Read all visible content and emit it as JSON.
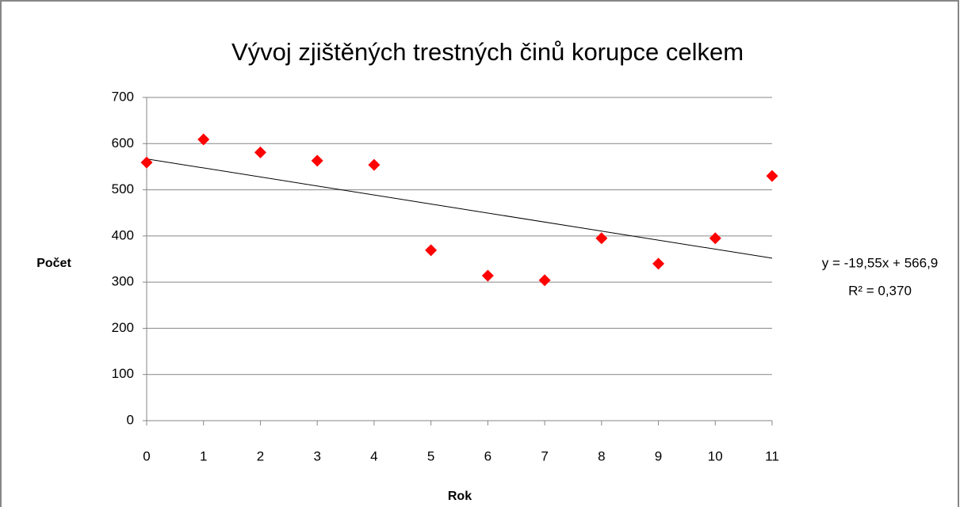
{
  "chart_data": {
    "type": "scatter",
    "title": "Vývoj zjištěných trestných činů korupce celkem",
    "x_label": "Rok",
    "y_label": "Počet",
    "x": [
      0,
      1,
      2,
      3,
      4,
      5,
      6,
      7,
      8,
      9,
      10,
      11
    ],
    "series": [
      {
        "name": "Počet",
        "color": "#ff0000",
        "values": [
          559,
          609,
          581,
          563,
          554,
          369,
          314,
          304,
          395,
          340,
          395,
          530
        ]
      }
    ],
    "xlim": [
      0,
      11
    ],
    "xticks": [
      0,
      1,
      2,
      3,
      4,
      5,
      6,
      7,
      8,
      9,
      10,
      11
    ],
    "ylim": [
      0,
      700
    ],
    "yticks": [
      0,
      100,
      200,
      300,
      400,
      500,
      600,
      700
    ],
    "grid": true,
    "trendline": {
      "slope": -19.55,
      "intercept": 566.9,
      "label": "y = -19,55x + 566,9",
      "r2": 0.37,
      "r2_label": "R² = 0,370"
    }
  }
}
